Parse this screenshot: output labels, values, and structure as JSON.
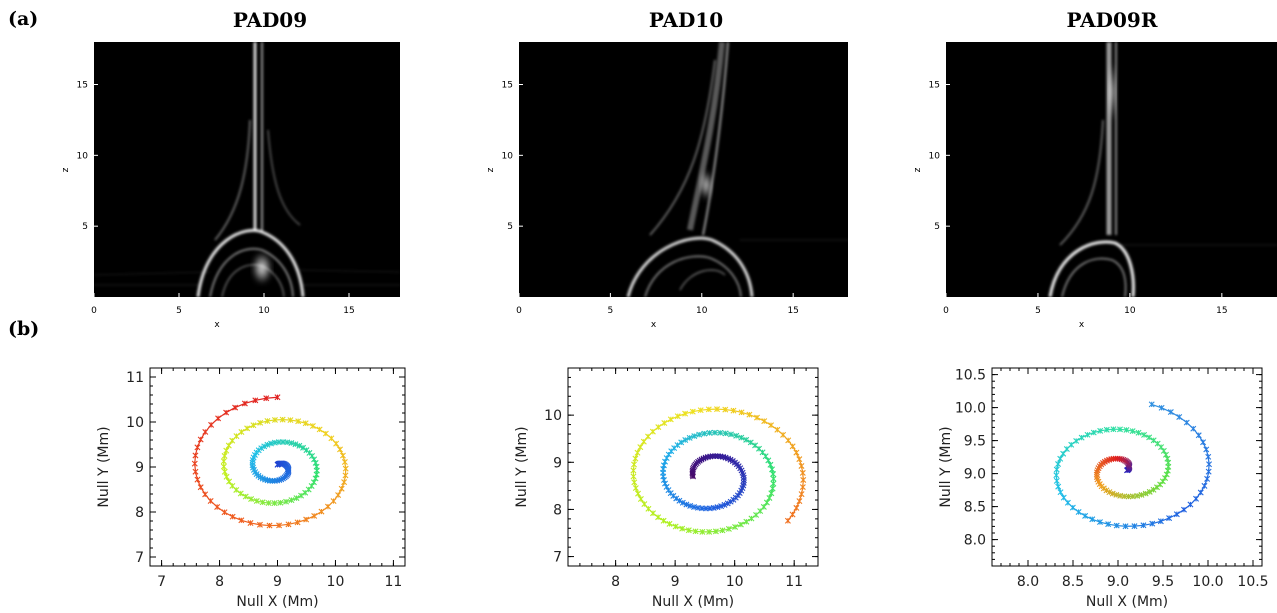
{
  "row_labels": {
    "a": "(a)",
    "b": "(b)"
  },
  "panels_a": [
    {
      "title": "PAD09",
      "xlabel": "x",
      "ylabel": "z",
      "xticks": [
        "0",
        "5",
        "10",
        "15"
      ],
      "yticks": [
        "5",
        "10",
        "15"
      ]
    },
    {
      "title": "PAD10",
      "xlabel": "x",
      "ylabel": "z",
      "xticks": [
        "0",
        "5",
        "10",
        "15"
      ],
      "yticks": [
        "5",
        "10",
        "15"
      ]
    },
    {
      "title": "PAD09R",
      "xlabel": "x",
      "ylabel": "z",
      "xticks": [
        "0",
        "5",
        "10",
        "15"
      ],
      "yticks": [
        "5",
        "10",
        "15"
      ]
    }
  ],
  "chart_data": [
    {
      "type": "scatter",
      "xlabel": "Null X (Mm)",
      "ylabel": "Null Y (Mm)",
      "xlim": [
        6.8,
        11.2
      ],
      "ylim": [
        6.8,
        11.2
      ],
      "xticks": [
        7,
        8,
        9,
        10,
        11
      ],
      "yticks": [
        7,
        8,
        9,
        10,
        11
      ],
      "xtick_labels": [
        "7",
        "8",
        "9",
        "10",
        "11"
      ],
      "ytick_labels": [
        "7",
        "8",
        "9",
        "10",
        "11"
      ],
      "spiral": {
        "cx": 9.0,
        "cy": 9.0,
        "r0": 0.05,
        "r1": 1.55,
        "turns": 3.0,
        "rot_cw": true,
        "points": 150,
        "start_angle_deg": 90
      },
      "color_stops": [
        "#2040d0",
        "#2070e0",
        "#20c0e8",
        "#30e070",
        "#c0f020",
        "#f0d020",
        "#f06020",
        "#e02020"
      ]
    },
    {
      "type": "scatter",
      "xlabel": "Null X (Mm)",
      "ylabel": "Null Y (Mm)",
      "xlim": [
        7.2,
        11.4
      ],
      "ylim": [
        6.8,
        11.0
      ],
      "xticks": [
        8,
        9,
        10,
        11
      ],
      "yticks": [
        7,
        8,
        9,
        10
      ],
      "xtick_labels": [
        "8",
        "9",
        "10",
        "11"
      ],
      "ytick_labels": [
        "7",
        "8",
        "9",
        "10"
      ],
      "spiral": {
        "cx": 9.6,
        "cy": 8.7,
        "r0": 0.3,
        "r1": 1.6,
        "turns": 2.6,
        "rot_cw": true,
        "points": 170,
        "start_angle_deg": 180
      },
      "color_stops": [
        "#4a0a6a",
        "#3020a0",
        "#2060e0",
        "#20b0e8",
        "#30e070",
        "#b0f020",
        "#f0e020",
        "#f07020"
      ]
    },
    {
      "type": "scatter",
      "xlabel": "Null X (Mm)",
      "ylabel": "Null Y (Mm)",
      "xlim": [
        7.6,
        10.6
      ],
      "ylim": [
        7.6,
        10.6
      ],
      "xticks": [
        8.0,
        8.5,
        9.0,
        9.5,
        10.0,
        10.5
      ],
      "yticks": [
        8.0,
        8.5,
        9.0,
        9.5,
        10.0,
        10.5
      ],
      "xtick_labels": [
        "8.0",
        "8.5",
        "9.0",
        "9.5",
        "10.0",
        "10.5"
      ],
      "ytick_labels": [
        "8.0",
        "8.5",
        "9.0",
        "9.5",
        "10.0",
        "10.5"
      ],
      "spiral": {
        "cx": 9.05,
        "cy": 9.05,
        "r0": 0.05,
        "r1": 1.05,
        "turns": 2.2,
        "rot_cw": false,
        "points": 120,
        "start_angle_deg": 0
      },
      "color_stops": [
        "#2020c0",
        "#e02020",
        "#f0a020",
        "#60e040",
        "#30e0a0",
        "#20c0e8",
        "#2060e0",
        "#3090e0"
      ]
    }
  ]
}
